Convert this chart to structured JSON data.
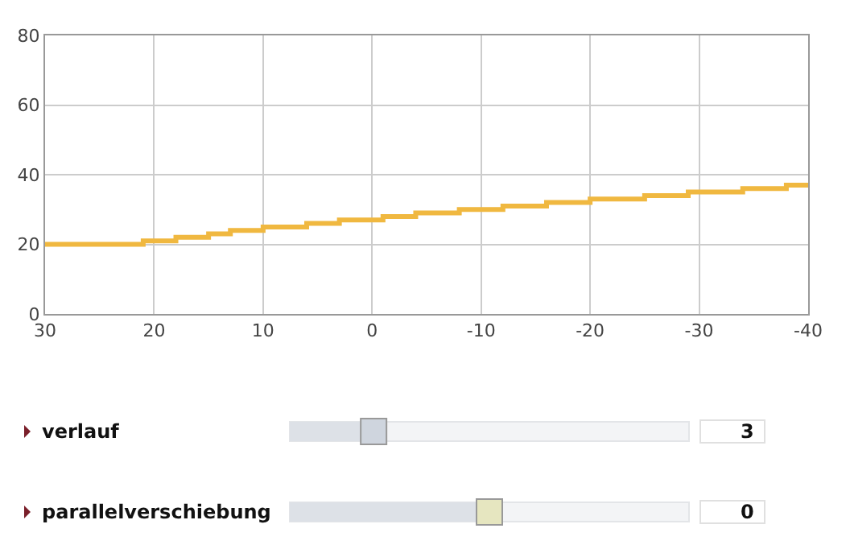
{
  "chart_data": {
    "type": "step",
    "x": [
      30,
      21,
      18,
      15,
      13,
      10,
      6,
      3,
      -1,
      -4,
      -8,
      -12,
      -16,
      -20,
      -25,
      -29,
      -34,
      -38,
      -40
    ],
    "series": [
      {
        "color": "#f0b840",
        "values": [
          20,
          21,
          22,
          23,
          24,
          25,
          26,
          27,
          28,
          29,
          30,
          31,
          32,
          33,
          34,
          35,
          36,
          37,
          37
        ]
      }
    ],
    "xlim": [
      30,
      -40
    ],
    "xticks": [
      30,
      20,
      10,
      0,
      -10,
      -20,
      -30,
      -40
    ],
    "ylim": [
      0,
      80
    ],
    "yticks": [
      0,
      20,
      40,
      60,
      80
    ],
    "grid": true,
    "legend": false,
    "marker": "none",
    "line_style": "solid",
    "annotations": [
      "verlauf",
      "3",
      "parallelverschiebung",
      "0"
    ]
  }
}
